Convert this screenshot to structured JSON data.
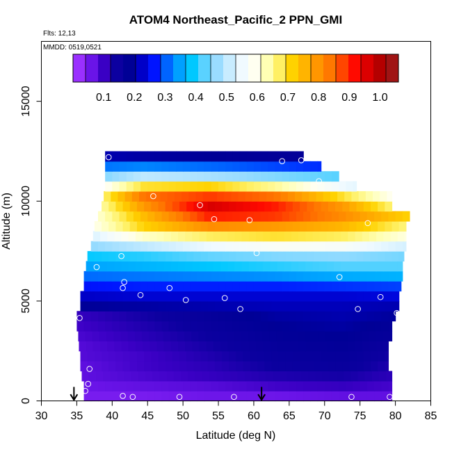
{
  "chart_data": {
    "type": "heatmap",
    "title": "ATOM4 Northeast_Pacific_2 PPN_GMI",
    "flights_label": "Flts: 12,13",
    "dates_label": "MMDD: 0519,0521",
    "xlabel": "Latitude (deg N)",
    "ylabel": "Altitude (m)",
    "xlim": [
      30,
      85
    ],
    "ylim": [
      0,
      18000
    ],
    "x_ticks": [
      "30",
      "35",
      "40",
      "45",
      "50",
      "55",
      "60",
      "65",
      "70",
      "75",
      "80",
      "85"
    ],
    "y_ticks": [
      "0",
      "5000",
      "10000",
      "15000"
    ],
    "grid": false,
    "colorbar": {
      "placement": "top, inside plot",
      "range": [
        0,
        1.06
      ],
      "tick_values": [
        0.1,
        0.2,
        0.3,
        0.4,
        0.5,
        0.6,
        0.7,
        0.8,
        0.9,
        1.0
      ],
      "tick_labels": [
        "0.1",
        "0.2",
        "0.3",
        "0.4",
        "0.5",
        "0.6",
        "0.7",
        "0.8",
        "0.9",
        "1.0"
      ],
      "colors": [
        "#9a30ff",
        "#6a14e8",
        "#3a00c4",
        "#0c00a0",
        "#000096",
        "#0000c8",
        "#0014ff",
        "#0064ff",
        "#00a0ff",
        "#00c8ff",
        "#5ad2ff",
        "#9adcff",
        "#c8ecff",
        "#f0faff",
        "#fffff0",
        "#ffffb4",
        "#fff064",
        "#ffd200",
        "#ffb400",
        "#ff9600",
        "#ff7800",
        "#ff4600",
        "#ff0a00",
        "#dc0000",
        "#b40000",
        "#a01414"
      ]
    },
    "altitude_bands": [
      {
        "alt": [
          0,
          500
        ],
        "lat": [
          36.0,
          79.5
        ],
        "values": [
          0.03,
          0.03,
          0.04,
          0.04,
          0.05,
          0.05
        ]
      },
      {
        "alt": [
          500,
          1000
        ],
        "lat": [
          36.0,
          79.5
        ],
        "values": [
          0.04,
          0.05,
          0.06,
          0.08,
          0.09,
          0.07
        ]
      },
      {
        "alt": [
          1000,
          1500
        ],
        "lat": [
          35.7,
          79.5
        ],
        "values": [
          0.05,
          0.07,
          0.09,
          0.11,
          0.12,
          0.09
        ]
      },
      {
        "alt": [
          1500,
          2000
        ],
        "lat": [
          35.5,
          79.0
        ],
        "values": [
          0.05,
          0.08,
          0.1,
          0.13,
          0.14,
          0.1
        ]
      },
      {
        "alt": [
          2000,
          2500
        ],
        "lat": [
          35.5,
          79.0
        ],
        "values": [
          0.06,
          0.08,
          0.11,
          0.14,
          0.15,
          0.11
        ]
      },
      {
        "alt": [
          2500,
          3000
        ],
        "lat": [
          35.3,
          79.0
        ],
        "values": [
          0.06,
          0.09,
          0.12,
          0.15,
          0.16,
          0.12
        ]
      },
      {
        "alt": [
          3000,
          3500
        ],
        "lat": [
          35.2,
          79.5
        ],
        "values": [
          0.07,
          0.1,
          0.13,
          0.16,
          0.17,
          0.14
        ]
      },
      {
        "alt": [
          3500,
          4000
        ],
        "lat": [
          35.0,
          79.5
        ],
        "values": [
          0.08,
          0.11,
          0.14,
          0.17,
          0.18,
          0.15
        ]
      },
      {
        "alt": [
          4000,
          4500
        ],
        "lat": [
          35.0,
          80.0
        ],
        "values": [
          0.09,
          0.12,
          0.15,
          0.18,
          0.19,
          0.17
        ]
      },
      {
        "alt": [
          4500,
          5000
        ],
        "lat": [
          35.5,
          80.5
        ],
        "values": [
          0.17,
          0.18,
          0.19,
          0.2,
          0.2,
          0.19
        ]
      },
      {
        "alt": [
          5000,
          5500
        ],
        "lat": [
          35.5,
          80.5
        ],
        "values": [
          0.21,
          0.22,
          0.22,
          0.22,
          0.22,
          0.23
        ]
      },
      {
        "alt": [
          5500,
          6000
        ],
        "lat": [
          36.0,
          80.8
        ],
        "values": [
          0.25,
          0.26,
          0.26,
          0.26,
          0.27,
          0.28
        ]
      },
      {
        "alt": [
          6000,
          6500
        ],
        "lat": [
          36.0,
          81.0
        ],
        "values": [
          0.3,
          0.31,
          0.32,
          0.33,
          0.35,
          0.36
        ]
      },
      {
        "alt": [
          6500,
          7000
        ],
        "lat": [
          36.3,
          81.0
        ],
        "values": [
          0.34,
          0.36,
          0.38,
          0.4,
          0.42,
          0.42
        ]
      },
      {
        "alt": [
          7000,
          7500
        ],
        "lat": [
          36.5,
          81.2
        ],
        "values": [
          0.38,
          0.4,
          0.43,
          0.45,
          0.46,
          0.44
        ]
      },
      {
        "alt": [
          7500,
          8000
        ],
        "lat": [
          37.0,
          81.5
        ],
        "values": [
          0.45,
          0.5,
          0.55,
          0.58,
          0.57,
          0.52
        ]
      },
      {
        "alt": [
          8000,
          8500
        ],
        "lat": [
          37.3,
          81.5
        ],
        "values": [
          0.5,
          0.62,
          0.68,
          0.7,
          0.68,
          0.6
        ]
      },
      {
        "alt": [
          8500,
          9000
        ],
        "lat": [
          37.5,
          81.5
        ],
        "values": [
          0.55,
          0.72,
          0.82,
          0.8,
          0.76,
          0.66
        ]
      },
      {
        "alt": [
          9000,
          9500
        ],
        "lat": [
          38.0,
          82.0
        ],
        "values": [
          0.55,
          0.75,
          0.92,
          0.9,
          0.82,
          0.72
        ]
      },
      {
        "alt": [
          9500,
          10000
        ],
        "lat": [
          38.5,
          79.5
        ],
        "values": [
          0.55,
          0.8,
          0.98,
          0.92,
          0.8,
          0.62
        ]
      },
      {
        "alt": [
          10000,
          10500
        ],
        "lat": [
          38.8,
          79.5
        ],
        "values": [
          0.55,
          0.85,
          0.9,
          0.85,
          0.7,
          0.55
        ]
      },
      {
        "alt": [
          10500,
          11000
        ],
        "lat": [
          39.0,
          74.5
        ],
        "values": [
          0.5,
          0.7,
          0.72,
          0.65,
          0.55,
          0.5
        ]
      },
      {
        "alt": [
          11000,
          11500
        ],
        "lat": [
          39.0,
          72.0
        ],
        "values": [
          0.42,
          0.5,
          0.48,
          0.45,
          0.42,
          0.38
        ]
      },
      {
        "alt": [
          11500,
          12000
        ],
        "lat": [
          39.0,
          69.5
        ],
        "values": [
          0.3,
          0.32,
          0.3,
          0.28,
          0.26,
          0.24
        ]
      },
      {
        "alt": [
          12000,
          12500
        ],
        "lat": [
          39.0,
          67.0
        ],
        "values": [
          0.2,
          0.18,
          0.17,
          0.16,
          0.16,
          0.15
        ]
      }
    ],
    "observation_points": [
      {
        "lat": 39.5,
        "alt": 12200
      },
      {
        "lat": 64.0,
        "alt": 12000
      },
      {
        "lat": 66.7,
        "alt": 12050
      },
      {
        "lat": 69.2,
        "alt": 11000
      },
      {
        "lat": 45.8,
        "alt": 10250
      },
      {
        "lat": 52.4,
        "alt": 9800
      },
      {
        "lat": 54.4,
        "alt": 9100
      },
      {
        "lat": 59.4,
        "alt": 9050
      },
      {
        "lat": 76.1,
        "alt": 8900
      },
      {
        "lat": 60.4,
        "alt": 7400
      },
      {
        "lat": 41.3,
        "alt": 7250
      },
      {
        "lat": 37.8,
        "alt": 6700
      },
      {
        "lat": 72.1,
        "alt": 6200
      },
      {
        "lat": 41.7,
        "alt": 5950
      },
      {
        "lat": 41.5,
        "alt": 5650
      },
      {
        "lat": 48.1,
        "alt": 5650
      },
      {
        "lat": 44.0,
        "alt": 5300
      },
      {
        "lat": 77.9,
        "alt": 5200
      },
      {
        "lat": 55.9,
        "alt": 5150
      },
      {
        "lat": 50.4,
        "alt": 5050
      },
      {
        "lat": 58.1,
        "alt": 4600
      },
      {
        "lat": 74.7,
        "alt": 4600
      },
      {
        "lat": 80.2,
        "alt": 4400
      },
      {
        "lat": 35.4,
        "alt": 4150
      },
      {
        "lat": 36.8,
        "alt": 1600
      },
      {
        "lat": 36.6,
        "alt": 850
      },
      {
        "lat": 36.2,
        "alt": 500
      },
      {
        "lat": 41.5,
        "alt": 250
      },
      {
        "lat": 42.9,
        "alt": 200
      },
      {
        "lat": 49.5,
        "alt": 200
      },
      {
        "lat": 57.2,
        "alt": 200
      },
      {
        "lat": 73.8,
        "alt": 200
      },
      {
        "lat": 79.2,
        "alt": 200
      }
    ],
    "arrows": [
      {
        "lat": 34.6,
        "alt_from": 700,
        "alt_to": 50
      },
      {
        "lat": 61.1,
        "alt_from": 700,
        "alt_to": 50
      }
    ]
  }
}
